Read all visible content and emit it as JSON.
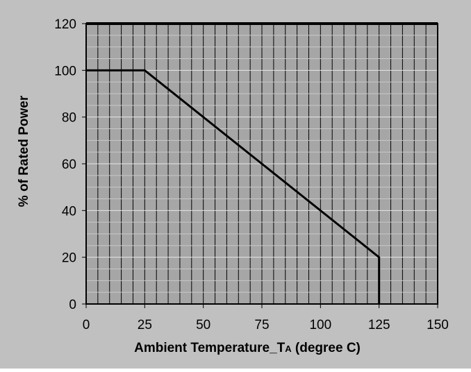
{
  "chart_data": {
    "type": "line",
    "title": "",
    "xlabel": "Ambient  Temperature_T",
    "xlabel_subscript": "A",
    "xlabel_suffix": " (degree C)",
    "ylabel": "% of Rated Power",
    "xlim": [
      0,
      150
    ],
    "ylim": [
      0,
      120
    ],
    "x_ticks": [
      0,
      25,
      50,
      75,
      100,
      125,
      150
    ],
    "y_ticks": [
      0,
      20,
      40,
      60,
      80,
      100,
      120
    ],
    "x_tick_labels": [
      "0",
      "25",
      "50",
      "75",
      "100",
      "125",
      "150"
    ],
    "y_tick_labels": [
      "0",
      "20",
      "40",
      "60",
      "80",
      "100",
      "120"
    ],
    "grid": true,
    "grid_x_step": 5,
    "grid_y_step": 5,
    "legend": "none",
    "series": [
      {
        "x": [
          0,
          25,
          125,
          125
        ],
        "y": [
          100,
          100,
          20,
          0
        ],
        "color": "#000000"
      }
    ],
    "colors": {
      "frame_background": "#c0c0c0",
      "plot_background": "#a6a6a6",
      "grid_line": "#000000",
      "series_line": "#000000"
    }
  }
}
